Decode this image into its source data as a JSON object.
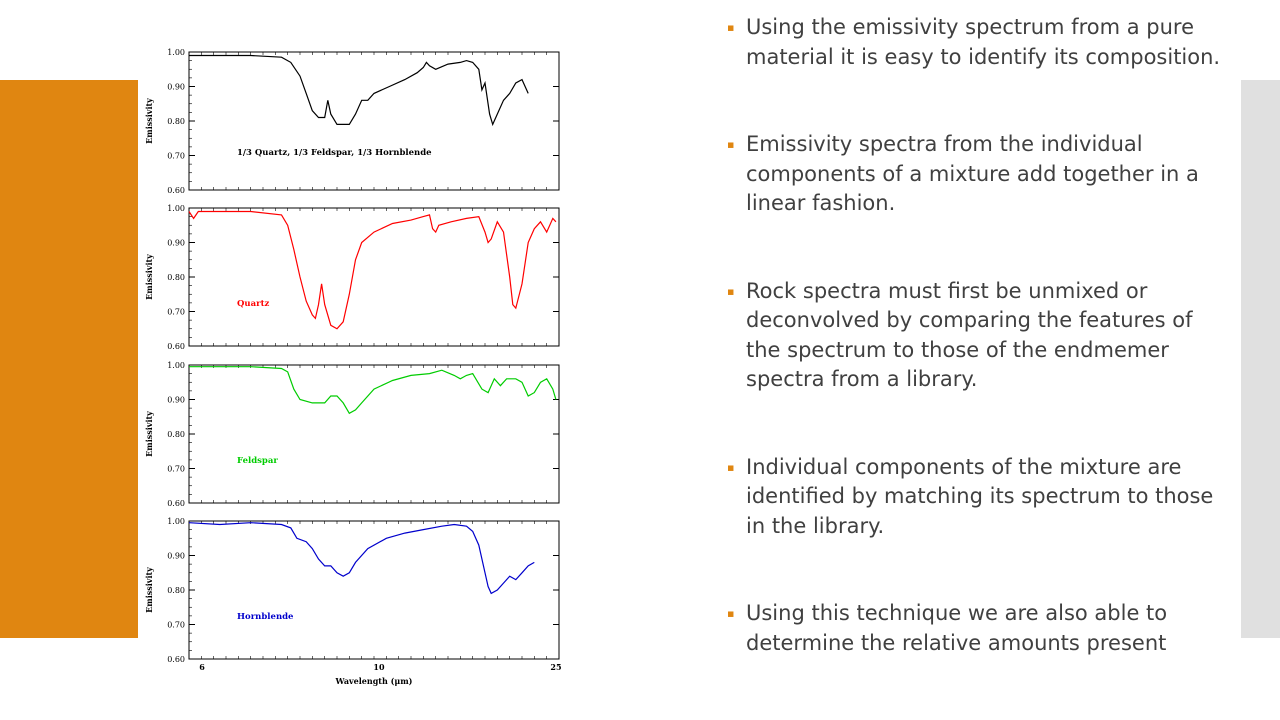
{
  "slide": {
    "bullets": [
      "Using the emissivity spectrum from a pure material it is easy to identify its composition.",
      "Emissivity spectra from the individual components of a mixture add together in a linear fashion.",
      "Rock spectra must first be unmixed or deconvolved by comparing the features of the spectrum to those of the endmemer spectra from a library.",
      "Individual components of the mixture are identified by matching its spectrum to those in the library.",
      "Using this technique we are also able to determine the relative amounts present"
    ],
    "colors": {
      "accent": "#e08611",
      "side_panel": "#e0e0e0",
      "text": "#404040"
    }
  },
  "chart_data": {
    "type": "line",
    "xlabel": "Wavelength (μm)",
    "x_ticks": [
      "6",
      "10",
      "25"
    ],
    "y_ticks": [
      "1.00",
      "0.90",
      "0.80",
      "0.70",
      "0.60"
    ],
    "ylim": [
      0.6,
      1.0
    ],
    "panels": [
      {
        "label": "1/3 Quartz, 1/3 Feldspar, 1/3 Hornblende",
        "ylabel": "Emissivity",
        "color": "#000000",
        "points": [
          [
            0,
            0.99
          ],
          [
            0.08,
            0.99
          ],
          [
            0.2,
            0.99
          ],
          [
            0.3,
            0.985
          ],
          [
            0.33,
            0.97
          ],
          [
            0.36,
            0.93
          ],
          [
            0.38,
            0.88
          ],
          [
            0.4,
            0.83
          ],
          [
            0.42,
            0.81
          ],
          [
            0.44,
            0.81
          ],
          [
            0.45,
            0.86
          ],
          [
            0.46,
            0.82
          ],
          [
            0.48,
            0.79
          ],
          [
            0.52,
            0.79
          ],
          [
            0.54,
            0.82
          ],
          [
            0.56,
            0.86
          ],
          [
            0.58,
            0.86
          ],
          [
            0.6,
            0.88
          ],
          [
            0.65,
            0.9
          ],
          [
            0.7,
            0.92
          ],
          [
            0.74,
            0.94
          ],
          [
            0.76,
            0.955
          ],
          [
            0.77,
            0.97
          ],
          [
            0.78,
            0.96
          ],
          [
            0.8,
            0.95
          ],
          [
            0.84,
            0.965
          ],
          [
            0.88,
            0.97
          ],
          [
            0.9,
            0.975
          ],
          [
            0.92,
            0.97
          ],
          [
            0.94,
            0.95
          ],
          [
            0.95,
            0.89
          ],
          [
            0.96,
            0.91
          ],
          [
            0.975,
            0.82
          ],
          [
            0.985,
            0.79
          ],
          [
            1.0,
            0.82
          ],
          [
            1.02,
            0.86
          ],
          [
            1.04,
            0.88
          ],
          [
            1.06,
            0.91
          ],
          [
            1.08,
            0.92
          ],
          [
            1.1,
            0.88
          ]
        ]
      },
      {
        "label": "Quartz",
        "ylabel": "Emissivity",
        "color": "#ff0000",
        "points": [
          [
            0,
            0.99
          ],
          [
            0.015,
            0.97
          ],
          [
            0.03,
            0.99
          ],
          [
            0.1,
            0.99
          ],
          [
            0.2,
            0.99
          ],
          [
            0.3,
            0.98
          ],
          [
            0.32,
            0.95
          ],
          [
            0.34,
            0.88
          ],
          [
            0.36,
            0.8
          ],
          [
            0.38,
            0.73
          ],
          [
            0.4,
            0.69
          ],
          [
            0.41,
            0.68
          ],
          [
            0.42,
            0.72
          ],
          [
            0.43,
            0.78
          ],
          [
            0.44,
            0.72
          ],
          [
            0.46,
            0.66
          ],
          [
            0.48,
            0.65
          ],
          [
            0.5,
            0.67
          ],
          [
            0.52,
            0.75
          ],
          [
            0.54,
            0.85
          ],
          [
            0.56,
            0.9
          ],
          [
            0.6,
            0.93
          ],
          [
            0.66,
            0.955
          ],
          [
            0.72,
            0.965
          ],
          [
            0.76,
            0.975
          ],
          [
            0.78,
            0.98
          ],
          [
            0.79,
            0.94
          ],
          [
            0.8,
            0.93
          ],
          [
            0.81,
            0.95
          ],
          [
            0.85,
            0.96
          ],
          [
            0.9,
            0.97
          ],
          [
            0.94,
            0.975
          ],
          [
            0.96,
            0.93
          ],
          [
            0.97,
            0.9
          ],
          [
            0.98,
            0.91
          ],
          [
            1.0,
            0.96
          ],
          [
            1.02,
            0.93
          ],
          [
            1.04,
            0.8
          ],
          [
            1.05,
            0.72
          ],
          [
            1.06,
            0.71
          ],
          [
            1.08,
            0.78
          ],
          [
            1.1,
            0.9
          ],
          [
            1.12,
            0.94
          ],
          [
            1.14,
            0.96
          ],
          [
            1.16,
            0.93
          ],
          [
            1.18,
            0.97
          ],
          [
            1.19,
            0.96
          ]
        ]
      },
      {
        "label": "Feldspar",
        "ylabel": "Emissivity",
        "color": "#00cc00",
        "points": [
          [
            0,
            0.995
          ],
          [
            0.1,
            0.995
          ],
          [
            0.2,
            0.995
          ],
          [
            0.3,
            0.99
          ],
          [
            0.32,
            0.98
          ],
          [
            0.34,
            0.93
          ],
          [
            0.36,
            0.9
          ],
          [
            0.4,
            0.89
          ],
          [
            0.44,
            0.89
          ],
          [
            0.46,
            0.91
          ],
          [
            0.48,
            0.91
          ],
          [
            0.5,
            0.89
          ],
          [
            0.52,
            0.86
          ],
          [
            0.54,
            0.87
          ],
          [
            0.56,
            0.89
          ],
          [
            0.6,
            0.93
          ],
          [
            0.66,
            0.955
          ],
          [
            0.72,
            0.97
          ],
          [
            0.78,
            0.975
          ],
          [
            0.82,
            0.985
          ],
          [
            0.86,
            0.97
          ],
          [
            0.88,
            0.96
          ],
          [
            0.9,
            0.97
          ],
          [
            0.92,
            0.975
          ],
          [
            0.95,
            0.93
          ],
          [
            0.97,
            0.92
          ],
          [
            0.99,
            0.96
          ],
          [
            1.01,
            0.94
          ],
          [
            1.03,
            0.96
          ],
          [
            1.06,
            0.96
          ],
          [
            1.08,
            0.95
          ],
          [
            1.1,
            0.91
          ],
          [
            1.12,
            0.92
          ],
          [
            1.14,
            0.95
          ],
          [
            1.16,
            0.96
          ],
          [
            1.18,
            0.93
          ],
          [
            1.19,
            0.9
          ]
        ]
      },
      {
        "label": "Hornblende",
        "ylabel": "Emissivity",
        "color": "#0000cc",
        "points": [
          [
            0,
            0.995
          ],
          [
            0.1,
            0.99
          ],
          [
            0.2,
            0.995
          ],
          [
            0.3,
            0.99
          ],
          [
            0.33,
            0.98
          ],
          [
            0.35,
            0.95
          ],
          [
            0.38,
            0.94
          ],
          [
            0.4,
            0.92
          ],
          [
            0.42,
            0.89
          ],
          [
            0.44,
            0.87
          ],
          [
            0.46,
            0.87
          ],
          [
            0.48,
            0.85
          ],
          [
            0.5,
            0.84
          ],
          [
            0.52,
            0.85
          ],
          [
            0.54,
            0.88
          ],
          [
            0.58,
            0.92
          ],
          [
            0.64,
            0.95
          ],
          [
            0.7,
            0.965
          ],
          [
            0.76,
            0.975
          ],
          [
            0.82,
            0.985
          ],
          [
            0.86,
            0.99
          ],
          [
            0.9,
            0.985
          ],
          [
            0.92,
            0.97
          ],
          [
            0.94,
            0.93
          ],
          [
            0.96,
            0.85
          ],
          [
            0.97,
            0.81
          ],
          [
            0.98,
            0.79
          ],
          [
            1.0,
            0.8
          ],
          [
            1.02,
            0.82
          ],
          [
            1.04,
            0.84
          ],
          [
            1.06,
            0.83
          ],
          [
            1.08,
            0.85
          ],
          [
            1.1,
            0.87
          ],
          [
            1.12,
            0.88
          ]
        ]
      }
    ]
  }
}
